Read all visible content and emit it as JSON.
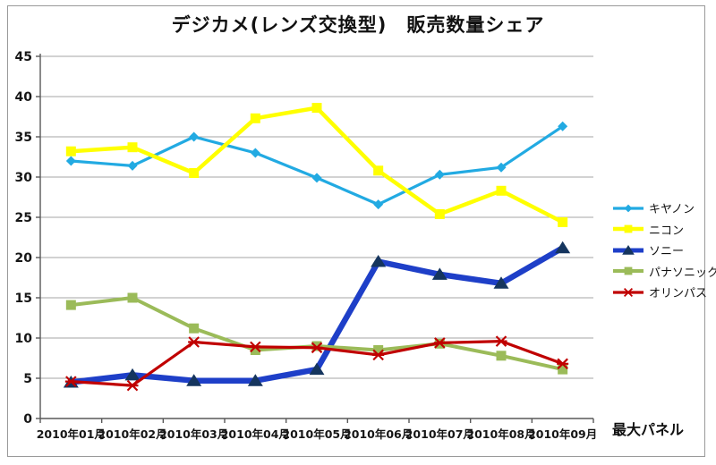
{
  "title": "デジカメ(レンズ交換型)　販売数量シェア",
  "annotation": "最大パネル",
  "colors": {
    "background": "#FFFFFF",
    "frame_border": "#9A9A9A",
    "gridline": "#A6A6A6",
    "axis": "#595959",
    "text": "#161616"
  },
  "chart_data": {
    "type": "line",
    "title": "デジカメ(レンズ交換型)　販売数量シェア",
    "xlabel": "",
    "ylabel": "",
    "ylim": [
      0,
      45
    ],
    "ytick_step": 5,
    "grid": true,
    "legend_position": "right",
    "categories": [
      "2010年01月",
      "2010年02月",
      "2010年03月",
      "2010年04月",
      "2010年05月",
      "2010年06月",
      "2010年07月",
      "2010年08月",
      "2010年09月"
    ],
    "series": [
      {
        "id": "canon",
        "name": "キヤノン",
        "color": "#22AAE2",
        "marker": "diamond",
        "marker_color": "#22AAE2",
        "line_width": 3.2,
        "values": [
          32.0,
          31.4,
          35.0,
          33.0,
          29.9,
          26.6,
          30.3,
          31.2,
          36.3
        ]
      },
      {
        "id": "nikon",
        "name": "ニコン",
        "color": "#FFFF00",
        "marker": "square",
        "marker_color": "#FFFF00",
        "line_width": 4.5,
        "values": [
          33.2,
          33.7,
          30.5,
          37.3,
          38.6,
          30.8,
          25.4,
          28.3,
          24.4
        ]
      },
      {
        "id": "sony",
        "name": "ソニー",
        "color": "#1E3FC8",
        "marker": "triangle",
        "marker_color": "#15355E",
        "line_width": 6.5,
        "values": [
          4.5,
          5.4,
          4.7,
          4.7,
          6.1,
          19.5,
          17.9,
          16.8,
          21.2
        ]
      },
      {
        "id": "panasonic",
        "name": "パナソニック",
        "color": "#9BBB59",
        "marker": "square",
        "marker_color": "#9BBB59",
        "line_width": 4,
        "values": [
          14.1,
          15.0,
          11.2,
          8.5,
          9.0,
          8.5,
          9.3,
          7.8,
          6.1
        ]
      },
      {
        "id": "olympus",
        "name": "オリンパス",
        "color": "#C00000",
        "marker": "xstar",
        "marker_color": "#C00000",
        "line_width": 3.2,
        "values": [
          4.6,
          4.1,
          9.5,
          8.9,
          8.8,
          7.9,
          9.4,
          9.6,
          6.8
        ]
      }
    ]
  }
}
